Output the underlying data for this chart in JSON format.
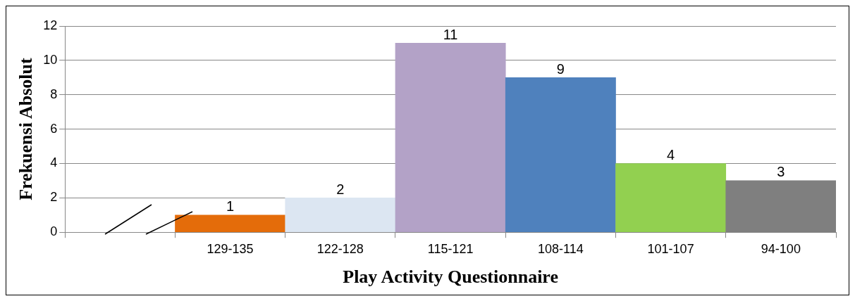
{
  "chart_data": {
    "type": "bar",
    "xlabel": "Play Activity Questionnaire",
    "ylabel": "Frekuensi Absolut",
    "categories": [
      null,
      "129-135",
      "122-128",
      "115-121",
      "108-114",
      "101-107",
      "94-100"
    ],
    "values": [
      null,
      1,
      2,
      11,
      9,
      4,
      3
    ],
    "colors": [
      "#ffffff",
      "#e46c0a",
      "#dce6f2",
      "#b3a2c7",
      "#4f81bd",
      "#92d050",
      "#7f7f7f"
    ],
    "ylim": [
      0,
      12
    ],
    "yticks": [
      0,
      2,
      4,
      6,
      8,
      10,
      12
    ],
    "grid": "y",
    "data_labels": true,
    "legend": false
  }
}
